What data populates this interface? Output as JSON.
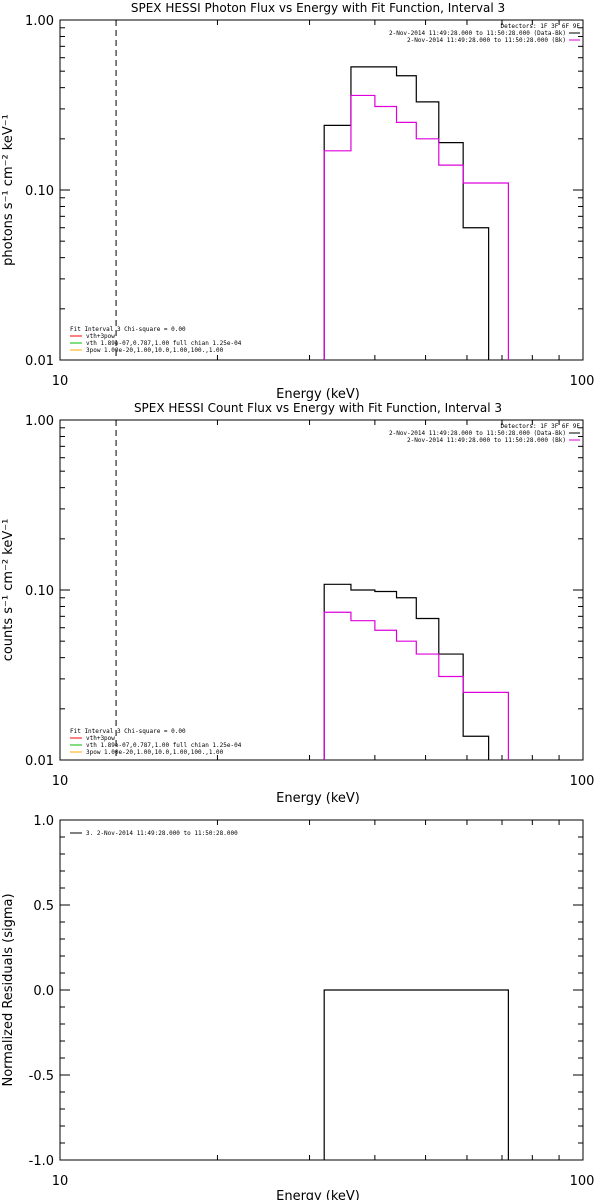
{
  "chart_data": [
    {
      "type": "line",
      "title": "SPEX HESSI Photon Flux vs Energy with Fit Function, Interval 3",
      "xlabel": "Energy (keV)",
      "ylabel": "photons s⁻¹ cm⁻² keV⁻¹",
      "x_scale": "log",
      "y_scale": "log",
      "xlim": [
        10,
        100
      ],
      "ylim": [
        0.01,
        1.0
      ],
      "x_tick_labels": [
        "10",
        "100"
      ],
      "y_tick_labels": [
        "1.00",
        "0.10",
        "0.01"
      ],
      "vline_x": 12.8,
      "detectors": "Detectors: 1F 3F 6F 9F",
      "series": [
        {
          "name": "2-Nov-2014 11:49:28.000 to 11:50:28.000 (Data-Bk)",
          "color": "#000000",
          "edges": [
            32,
            36,
            40,
            44,
            48,
            53,
            59,
            66
          ],
          "values": [
            0.24,
            0.53,
            0.53,
            0.47,
            0.33,
            0.19,
            0.06
          ]
        },
        {
          "name": "2-Nov-2014 11:49:28.000 to 11:50:28.000 (Bk)",
          "color": "#dd00dd",
          "edges": [
            32,
            36,
            40,
            44,
            48,
            53,
            59,
            66,
            72
          ],
          "values": [
            0.17,
            0.36,
            0.31,
            0.25,
            0.2,
            0.14,
            0.11,
            0.11
          ]
        }
      ],
      "fit_legend": {
        "header": "Fit Interval  3   Chi-square = 0.00",
        "items": [
          {
            "text": "vth+3pow",
            "color": "#ff0000"
          },
          {
            "text": "vth 1.89e-07,0.787,1.00  full chian 1.25e-04",
            "color": "#00bb00"
          },
          {
            "text": "3pow 1.00e-20,1.00,10.0,1.00,100.,1.00",
            "color": "#ffaa00"
          }
        ]
      }
    },
    {
      "type": "line",
      "title": "SPEX HESSI Count Flux vs Energy with Fit Function, Interval 3",
      "xlabel": "Energy (keV)",
      "ylabel": "counts s⁻¹ cm⁻² keV⁻¹",
      "x_scale": "log",
      "y_scale": "log",
      "xlim": [
        10,
        100
      ],
      "ylim": [
        0.01,
        1.0
      ],
      "x_tick_labels": [
        "10",
        "100"
      ],
      "y_tick_labels": [
        "1.00",
        "0.10",
        "0.01"
      ],
      "vline_x": 12.8,
      "detectors": "Detectors: 1F 3F 6F 9F",
      "series": [
        {
          "name": "2-Nov-2014 11:49:28.000 to 11:50:28.000 (Data-Bk)",
          "color": "#000000",
          "edges": [
            32,
            36,
            40,
            44,
            48,
            53,
            59,
            66
          ],
          "values": [
            0.108,
            0.1,
            0.098,
            0.09,
            0.068,
            0.042,
            0.0138
          ]
        },
        {
          "name": "2-Nov-2014 11:49:28.000 to 11:50:28.000 (Bk)",
          "color": "#dd00dd",
          "edges": [
            32,
            36,
            40,
            44,
            48,
            53,
            59,
            66,
            72
          ],
          "values": [
            0.074,
            0.066,
            0.058,
            0.05,
            0.042,
            0.031,
            0.025,
            0.025
          ]
        }
      ],
      "fit_legend": {
        "header": "Fit Interval  3   Chi-square = 0.00",
        "items": [
          {
            "text": "vth+3pow",
            "color": "#ff0000"
          },
          {
            "text": "vth 1.89e-07,0.787,1.00  full chian 1.25e-04",
            "color": "#00bb00"
          },
          {
            "text": "3pow 1.00e-20,1.00,10.0,1.00,100.,1.00",
            "color": "#ffaa00"
          }
        ]
      }
    },
    {
      "type": "line",
      "title": "",
      "xlabel": "Energy (keV)",
      "ylabel": "Normalized Residuals (sigma)",
      "x_scale": "log",
      "y_scale": "linear",
      "xlim": [
        10,
        100
      ],
      "ylim": [
        -1.0,
        1.0
      ],
      "x_tick_labels": [
        "10",
        "100"
      ],
      "y_ticks": [
        1.0,
        0.5,
        0.0,
        -0.5,
        -1.0
      ],
      "y_tick_labels": [
        "1.0",
        "0.5",
        "0.0",
        "-0.5",
        "-1.0"
      ],
      "series": [
        {
          "name": "3. 2-Nov-2014 11:49:28.000 to 11:50:28.000",
          "color": "#000000",
          "edges": [
            32,
            72
          ],
          "values": [
            0.0
          ]
        }
      ]
    }
  ]
}
